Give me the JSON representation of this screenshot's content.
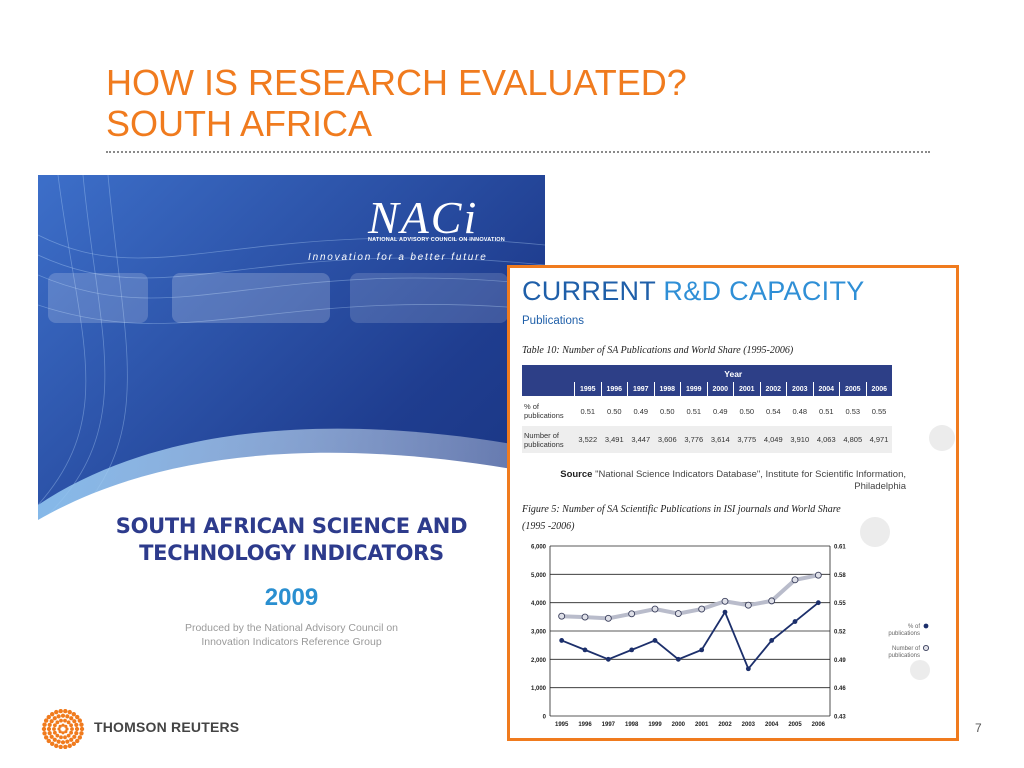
{
  "slide": {
    "title_line1": "HOW IS RESEARCH EVALUATED?",
    "title_line2": "SOUTH AFRICA",
    "page_number": "7"
  },
  "footer": {
    "brand": "THOMSON REUTERS"
  },
  "cover": {
    "logo": "NACi",
    "logo_subtitle": "NATIONAL ADVISORY COUNCIL ON INNOVATION",
    "tagline": "Innovation for a better future",
    "title_line1": "SOUTH AFRICAN SCIENCE AND",
    "title_line2": "TECHNOLOGY INDICATORS",
    "year": "2009",
    "produced_line1": "Produced by the National Advisory Council on",
    "produced_line2": "Innovation Indicators Reference Group",
    "colors": {
      "navy": "#2d3b8c",
      "blue": "#2a8fd0",
      "background": "#2a4a9e"
    }
  },
  "report": {
    "title_part1": "CURRENT",
    "title_part2": "R&D CAPACITY",
    "subtitle": "Publications",
    "table_caption": "Table 10: Number of SA Publications and World Share (1995-2006)",
    "table": {
      "group_header": "Year",
      "years": [
        "1995",
        "1996",
        "1997",
        "1998",
        "1999",
        "2000",
        "2001",
        "2002",
        "2003",
        "2004",
        "2005",
        "2006"
      ],
      "rows": [
        {
          "label_line1": "% of",
          "label_line2": "publications",
          "values": [
            "0.51",
            "0.50",
            "0.49",
            "0.50",
            "0.51",
            "0.49",
            "0.50",
            "0.54",
            "0.48",
            "0.51",
            "0.53",
            "0.55"
          ]
        },
        {
          "label_line1": "Number of",
          "label_line2": "publications",
          "values": [
            "3,522",
            "3,491",
            "3,447",
            "3,606",
            "3,776",
            "3,614",
            "3,775",
            "4,049",
            "3,910",
            "4,063",
            "4,805",
            "4,971"
          ]
        }
      ]
    },
    "source_label": "Source",
    "source_text": "\"National Science Indicators Database\", Institute for Scientific Information,",
    "source_text2": "Philadelphia",
    "figure_caption_line1": "Figure 5: Number of SA Scientific Publications in ISI journals and World Share",
    "figure_caption_line2": "(1995 -2006)"
  },
  "chart_data": {
    "type": "line",
    "x": [
      "1995",
      "1996",
      "1997",
      "1998",
      "1999",
      "2000",
      "2001",
      "2002",
      "2003",
      "2004",
      "2005",
      "2006"
    ],
    "y_left_ticks": [
      "0",
      "1,000",
      "2,000",
      "3,000",
      "4,000",
      "5,000",
      "6,000"
    ],
    "y_left_range": [
      0,
      6000
    ],
    "y_right_ticks": [
      "0.43",
      "0.46",
      "0.49",
      "0.52",
      "0.55",
      "0.58",
      "0.61"
    ],
    "y_right_range": [
      0.43,
      0.61
    ],
    "series": [
      {
        "name_line1": "% of",
        "name_line2": "publications",
        "axis": "right",
        "color": "#1c2f6b",
        "values": [
          0.51,
          0.5,
          0.49,
          0.5,
          0.51,
          0.49,
          0.5,
          0.54,
          0.48,
          0.51,
          0.53,
          0.55
        ]
      },
      {
        "name_line1": "Number of",
        "name_line2": "publications",
        "axis": "left",
        "color": "#b9bccb",
        "values": [
          3522,
          3491,
          3447,
          3606,
          3776,
          3614,
          3775,
          4049,
          3910,
          4063,
          4805,
          4971
        ]
      }
    ],
    "grid": true,
    "legend_position": "right"
  }
}
